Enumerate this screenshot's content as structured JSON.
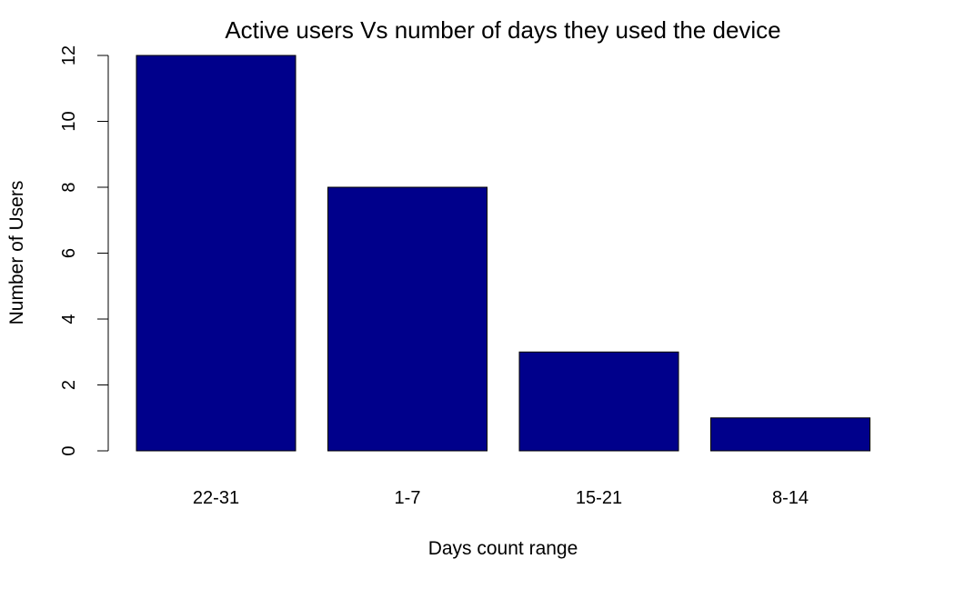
{
  "chart_data": {
    "type": "bar",
    "title": "Active users Vs number of days they used the device",
    "xlabel": "Days count range",
    "ylabel": "Number of Users",
    "categories": [
      "22-31",
      "1-7",
      "15-21",
      "8-14"
    ],
    "values": [
      12,
      8,
      3,
      1
    ],
    "ylim": [
      0,
      12
    ],
    "yticks": [
      0,
      2,
      4,
      6,
      8,
      10,
      12
    ],
    "grid": false,
    "legend": "none",
    "bar_color": "#00008B"
  }
}
